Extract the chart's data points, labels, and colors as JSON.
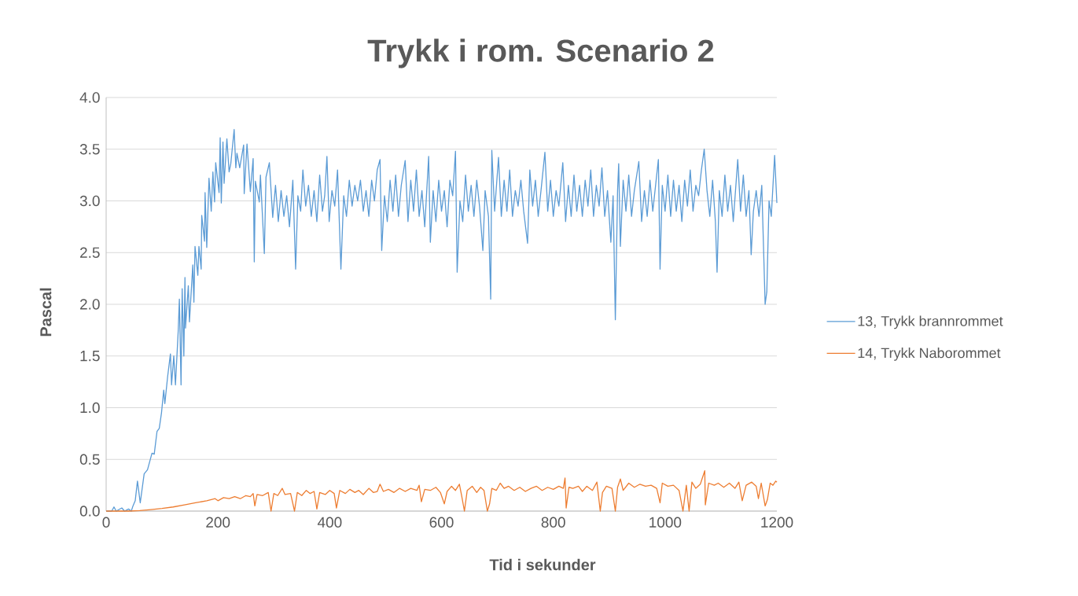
{
  "chart_data": {
    "type": "line",
    "title": "Trykk i rom. Scenario 2",
    "xlabel": "Tid i sekunder",
    "ylabel": "Pascal",
    "xlim": [
      0,
      1200
    ],
    "ylim": [
      0,
      4
    ],
    "xticks": [
      0,
      200,
      400,
      600,
      800,
      1000,
      1200
    ],
    "yticks": [
      {
        "value": 0,
        "label": "0.0"
      },
      {
        "value": 0.5,
        "label": "0.5"
      },
      {
        "value": 1,
        "label": "1.0"
      },
      {
        "value": 1.5,
        "label": "1.5"
      },
      {
        "value": 2,
        "label": "2.0"
      },
      {
        "value": 2.5,
        "label": "2.5"
      },
      {
        "value": 3,
        "label": "3.0"
      },
      {
        "value": 3.5,
        "label": "3.5"
      },
      {
        "value": 4,
        "label": "4.0"
      }
    ],
    "grid": "y",
    "legend": "right",
    "marker": "none",
    "line_style": "solid",
    "series": [
      {
        "name": "13, Trykk brannrommet",
        "color": "#5b9bd5",
        "x": [
          0,
          10,
          14,
          18,
          28,
          33,
          40,
          45,
          48,
          52,
          56,
          61,
          68,
          74,
          82,
          86,
          91,
          95,
          99,
          103,
          105,
          110,
          115,
          117,
          121,
          124,
          129,
          131,
          134,
          136,
          139,
          141,
          142,
          147,
          149,
          155,
          157,
          159,
          164,
          166,
          170,
          171,
          176,
          177,
          180,
          184,
          188,
          191,
          194,
          196,
          202,
          204,
          206,
          209,
          211,
          216,
          220,
          223,
          229,
          232,
          234,
          239,
          246,
          247,
          252,
          258,
          263,
          265,
          267,
          274,
          276,
          283,
          286,
          292,
          298,
          303,
          308,
          313,
          318,
          323,
          328,
          334,
          339,
          343,
          348,
          352,
          357,
          362,
          367,
          372,
          377,
          382,
          387,
          391,
          395,
          399,
          404,
          409,
          414,
          420,
          425,
          430,
          435,
          440,
          445,
          450,
          455,
          460,
          465,
          470,
          475,
          480,
          485,
          490,
          493,
          498,
          503,
          508,
          513,
          518,
          523,
          528,
          535,
          540,
          545,
          550,
          555,
          560,
          565,
          570,
          577,
          580,
          585,
          590,
          595,
          600,
          605,
          610,
          615,
          620,
          625,
          628,
          633,
          638,
          643,
          648,
          653,
          658,
          663,
          668,
          674,
          678,
          684,
          688,
          690,
          695,
          702,
          707,
          712,
          717,
          722,
          727,
          732,
          737,
          742,
          747,
          754,
          758,
          763,
          768,
          773,
          778,
          785,
          790,
          795,
          800,
          805,
          810,
          817,
          822,
          827,
          832,
          837,
          842,
          847,
          852,
          857,
          862,
          867,
          872,
          877,
          882,
          887,
          892,
          897,
          903,
          907,
          911,
          915,
          917,
          920,
          925,
          930,
          935,
          940,
          945,
          953,
          958,
          963,
          968,
          973,
          978,
          983,
          988,
          991,
          995,
          1000,
          1005,
          1010,
          1015,
          1020,
          1025,
          1030,
          1035,
          1040,
          1045,
          1050,
          1055,
          1060,
          1065,
          1070,
          1075,
          1080,
          1085,
          1090,
          1093,
          1097,
          1102,
          1107,
          1112,
          1117,
          1122,
          1130,
          1135,
          1140,
          1145,
          1150,
          1154,
          1158,
          1163,
          1168,
          1173,
          1179,
          1182,
          1186,
          1190,
          1196,
          1200
        ],
        "values": [
          0.0,
          0.0,
          0.04,
          0.0,
          0.03,
          0.0,
          0.02,
          0.0,
          0.05,
          0.1,
          0.29,
          0.08,
          0.36,
          0.4,
          0.56,
          0.55,
          0.77,
          0.8,
          0.95,
          1.17,
          1.04,
          1.3,
          1.52,
          1.22,
          1.5,
          1.22,
          1.75,
          2.05,
          1.22,
          2.15,
          1.5,
          2.26,
          1.77,
          2.18,
          1.83,
          2.38,
          2.02,
          2.56,
          2.28,
          2.56,
          2.34,
          2.86,
          2.61,
          3.08,
          2.55,
          3.22,
          2.9,
          3.28,
          2.99,
          3.37,
          3.08,
          3.61,
          2.98,
          3.57,
          3.17,
          3.6,
          3.28,
          3.36,
          3.69,
          3.32,
          3.46,
          3.32,
          3.54,
          3.07,
          3.55,
          3.09,
          3.41,
          2.41,
          3.19,
          2.99,
          3.25,
          2.49,
          3.23,
          3.37,
          2.84,
          3.15,
          2.8,
          3.1,
          2.85,
          3.05,
          2.75,
          3.2,
          2.34,
          3.05,
          2.9,
          3.3,
          2.95,
          3.15,
          2.85,
          3.1,
          2.8,
          3.25,
          2.9,
          3.05,
          3.43,
          2.8,
          3.1,
          2.95,
          3.3,
          2.34,
          3.05,
          2.85,
          3.2,
          2.95,
          3.15,
          3.0,
          3.2,
          2.9,
          3.1,
          2.85,
          3.2,
          3.0,
          3.3,
          3.4,
          2.52,
          3.05,
          2.8,
          3.2,
          2.9,
          3.25,
          2.85,
          3.15,
          3.39,
          2.8,
          3.2,
          2.9,
          3.3,
          2.85,
          3.1,
          2.75,
          3.43,
          2.6,
          3.1,
          2.8,
          3.2,
          2.9,
          3.1,
          2.75,
          3.2,
          3.05,
          3.48,
          2.31,
          3.0,
          2.8,
          3.25,
          2.9,
          3.15,
          2.85,
          3.2,
          2.95,
          2.52,
          3.1,
          2.85,
          2.05,
          3.49,
          2.9,
          3.42,
          2.85,
          3.2,
          2.9,
          3.3,
          2.85,
          3.1,
          2.95,
          3.2,
          2.9,
          2.59,
          3.3,
          2.95,
          3.2,
          2.85,
          3.1,
          3.47,
          2.9,
          3.2,
          2.85,
          3.1,
          2.95,
          3.37,
          2.8,
          3.15,
          2.85,
          3.25,
          2.9,
          3.15,
          2.85,
          3.2,
          2.95,
          3.3,
          2.85,
          3.15,
          2.95,
          3.32,
          2.85,
          3.1,
          2.6,
          3.05,
          1.85,
          3.1,
          3.36,
          2.56,
          3.2,
          2.9,
          3.25,
          2.85,
          3.1,
          3.38,
          2.8,
          3.1,
          2.85,
          3.2,
          2.9,
          3.15,
          3.4,
          2.34,
          3.15,
          2.9,
          3.25,
          2.85,
          3.2,
          2.9,
          3.15,
          2.8,
          3.2,
          2.95,
          3.3,
          2.9,
          3.15,
          3.05,
          3.3,
          3.5,
          3.1,
          2.85,
          3.2,
          2.8,
          2.31,
          3.1,
          2.85,
          3.25,
          2.9,
          3.15,
          2.8,
          3.4,
          2.9,
          3.25,
          2.85,
          3.1,
          2.48,
          2.9,
          3.1,
          2.85,
          3.15,
          2.0,
          2.12,
          3.0,
          2.85,
          3.44,
          2.98
        ]
      },
      {
        "name": "14, Trykk Naborommet",
        "color": "#ed7d31",
        "x": [
          0,
          40,
          60,
          80,
          100,
          120,
          140,
          160,
          180,
          195,
          200,
          210,
          220,
          230,
          240,
          250,
          258,
          263,
          266,
          270,
          280,
          290,
          295,
          300,
          307,
          315,
          320,
          330,
          337,
          342,
          350,
          358,
          365,
          372,
          377,
          382,
          392,
          400,
          408,
          412,
          418,
          428,
          436,
          445,
          452,
          460,
          470,
          478,
          485,
          490,
          496,
          505,
          515,
          525,
          535,
          545,
          556,
          560,
          564,
          570,
          580,
          590,
          598,
          605,
          610,
          618,
          625,
          632,
          636,
          641,
          646,
          655,
          663,
          670,
          676,
          682,
          686,
          690,
          698,
          705,
          712,
          720,
          730,
          740,
          750,
          760,
          770,
          780,
          790,
          800,
          810,
          818,
          821,
          823,
          828,
          835,
          845,
          852,
          860,
          870,
          878,
          884,
          888,
          895,
          905,
          911,
          915,
          920,
          925,
          935,
          945,
          955,
          965,
          975,
          985,
          991,
          995,
          1005,
          1015,
          1025,
          1032,
          1038,
          1043,
          1048,
          1055,
          1063,
          1071,
          1072,
          1078,
          1088,
          1095,
          1105,
          1115,
          1125,
          1132,
          1138,
          1145,
          1155,
          1163,
          1167,
          1172,
          1179,
          1183,
          1188,
          1193,
          1198,
          1200
        ],
        "values": [
          0.0,
          0.0,
          0.005,
          0.015,
          0.025,
          0.04,
          0.06,
          0.08,
          0.1,
          0.12,
          0.1,
          0.13,
          0.12,
          0.14,
          0.12,
          0.15,
          0.14,
          0.17,
          0.05,
          0.16,
          0.15,
          0.18,
          0.0,
          0.17,
          0.15,
          0.22,
          0.16,
          0.17,
          0.0,
          0.18,
          0.15,
          0.2,
          0.17,
          0.19,
          0.02,
          0.18,
          0.16,
          0.2,
          0.17,
          0.03,
          0.2,
          0.17,
          0.21,
          0.18,
          0.2,
          0.16,
          0.22,
          0.18,
          0.19,
          0.26,
          0.19,
          0.21,
          0.18,
          0.22,
          0.19,
          0.22,
          0.2,
          0.25,
          0.09,
          0.21,
          0.2,
          0.23,
          0.18,
          0.07,
          0.19,
          0.24,
          0.2,
          0.26,
          0.15,
          0.0,
          0.2,
          0.24,
          0.18,
          0.23,
          0.2,
          0.0,
          0.07,
          0.22,
          0.2,
          0.27,
          0.22,
          0.24,
          0.2,
          0.23,
          0.19,
          0.22,
          0.24,
          0.2,
          0.23,
          0.21,
          0.24,
          0.22,
          0.32,
          0.03,
          0.23,
          0.22,
          0.24,
          0.19,
          0.24,
          0.2,
          0.28,
          0.0,
          0.18,
          0.24,
          0.22,
          0.0,
          0.23,
          0.31,
          0.2,
          0.27,
          0.23,
          0.26,
          0.24,
          0.25,
          0.22,
          0.08,
          0.27,
          0.24,
          0.25,
          0.2,
          0.0,
          0.25,
          0.0,
          0.28,
          0.22,
          0.26,
          0.39,
          0.06,
          0.27,
          0.25,
          0.27,
          0.23,
          0.27,
          0.22,
          0.28,
          0.1,
          0.25,
          0.28,
          0.24,
          0.12,
          0.27,
          0.05,
          0.11,
          0.27,
          0.25,
          0.29,
          0.28
        ]
      }
    ]
  }
}
